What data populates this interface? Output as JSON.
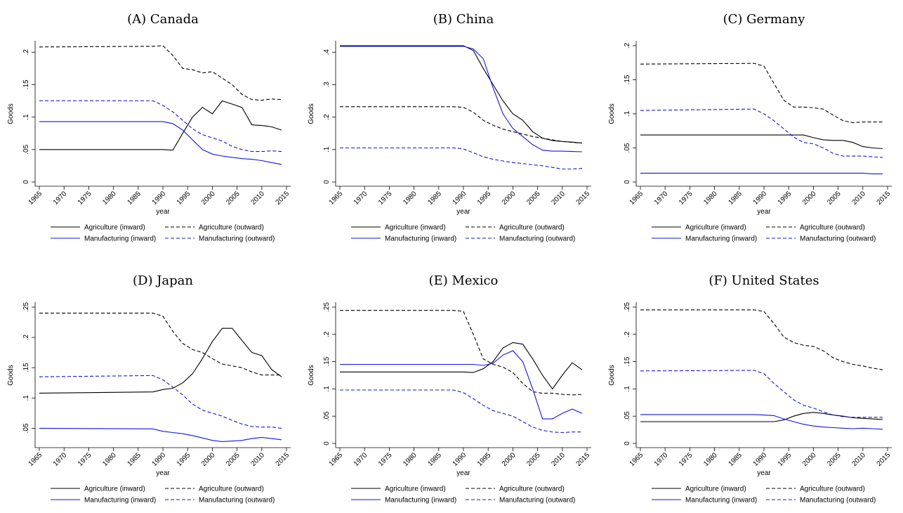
{
  "chart_data": [
    {
      "type": "line",
      "title": "(A) Canada",
      "x_label": "year",
      "y_label": "Goods",
      "x": [
        1965,
        1988,
        1990,
        1992,
        1994,
        1996,
        1998,
        2000,
        2002,
        2004,
        2006,
        2008,
        2010,
        2012,
        2014
      ],
      "xlim": [
        1965,
        2015
      ],
      "xticks": [
        1965,
        1970,
        1975,
        1980,
        1985,
        1990,
        1995,
        2000,
        2005,
        2010,
        2015
      ],
      "ylim": [
        0,
        0.21
      ],
      "yticks": [
        0,
        {
          "value": 0.05,
          "label": ".05"
        },
        {
          "value": 0.1,
          "label": ".1"
        },
        {
          "value": 0.15,
          "label": ".15"
        },
        {
          "value": 0.2,
          "label": ".2"
        }
      ],
      "series": [
        {
          "name": "Agriculture (inward)",
          "color": "#000000",
          "style": "solid",
          "values": [
            0.05,
            0.05,
            0.05,
            0.049,
            0.075,
            0.1,
            0.115,
            0.105,
            0.125,
            0.12,
            0.115,
            0.088,
            0.087,
            0.085,
            0.08
          ]
        },
        {
          "name": "Agriculture (outward)",
          "color": "#000000",
          "style": "dashed",
          "values": [
            0.208,
            0.209,
            0.21,
            0.195,
            0.175,
            0.173,
            0.168,
            0.17,
            0.16,
            0.15,
            0.135,
            0.127,
            0.126,
            0.128,
            0.127
          ]
        },
        {
          "name": "Manufacturing (inward)",
          "color": "#1414e6",
          "style": "solid",
          "values": [
            0.093,
            0.093,
            0.093,
            0.09,
            0.08,
            0.065,
            0.05,
            0.043,
            0.04,
            0.038,
            0.036,
            0.035,
            0.033,
            0.03,
            0.027
          ]
        },
        {
          "name": "Manufacturing (outward)",
          "color": "#1414e6",
          "style": "dashed",
          "values": [
            0.125,
            0.125,
            0.118,
            0.108,
            0.095,
            0.082,
            0.073,
            0.068,
            0.063,
            0.055,
            0.05,
            0.047,
            0.047,
            0.048,
            0.047
          ]
        }
      ]
    },
    {
      "type": "line",
      "title": "(B) China",
      "x_label": "year",
      "y_label": "Goods",
      "x": [
        1965,
        1988,
        1990,
        1992,
        1994,
        1996,
        1998,
        2000,
        2002,
        2004,
        2006,
        2008,
        2010,
        2012,
        2014
      ],
      "xlim": [
        1965,
        2015
      ],
      "xticks": [
        1965,
        1970,
        1975,
        1980,
        1985,
        1990,
        1995,
        2000,
        2005,
        2010,
        2015
      ],
      "ylim": [
        0,
        0.42
      ],
      "yticks": [
        0,
        {
          "value": 0.1,
          "label": ".1"
        },
        {
          "value": 0.2,
          "label": ".2"
        },
        {
          "value": 0.3,
          "label": ".3"
        },
        {
          "value": 0.4,
          "label": ".4"
        }
      ],
      "series": [
        {
          "name": "Agriculture (inward)",
          "color": "#000000",
          "style": "solid",
          "values": [
            0.42,
            0.42,
            0.42,
            0.405,
            0.35,
            0.3,
            0.25,
            0.21,
            0.19,
            0.155,
            0.135,
            0.128,
            0.125,
            0.123,
            0.12
          ]
        },
        {
          "name": "Agriculture (outward)",
          "color": "#000000",
          "style": "dashed",
          "values": [
            0.232,
            0.232,
            0.23,
            0.215,
            0.19,
            0.175,
            0.163,
            0.155,
            0.148,
            0.14,
            0.135,
            0.13,
            0.125,
            0.122,
            0.12
          ]
        },
        {
          "name": "Manufacturing (inward)",
          "color": "#1414e6",
          "style": "solid",
          "values": [
            0.418,
            0.418,
            0.418,
            0.41,
            0.38,
            0.29,
            0.21,
            0.165,
            0.14,
            0.115,
            0.098,
            0.095,
            0.095,
            0.094,
            0.093
          ]
        },
        {
          "name": "Manufacturing (outward)",
          "color": "#1414e6",
          "style": "dashed",
          "values": [
            0.105,
            0.105,
            0.102,
            0.09,
            0.078,
            0.07,
            0.065,
            0.06,
            0.057,
            0.053,
            0.05,
            0.045,
            0.04,
            0.04,
            0.042
          ]
        }
      ]
    },
    {
      "type": "line",
      "title": "(C) Germany",
      "x_label": "year",
      "y_label": "Goods",
      "x": [
        1965,
        1988,
        1990,
        1992,
        1994,
        1996,
        1998,
        2000,
        2002,
        2004,
        2006,
        2008,
        2010,
        2012,
        2014
      ],
      "xlim": [
        1965,
        2015
      ],
      "xticks": [
        1965,
        1970,
        1975,
        1980,
        1985,
        1990,
        1995,
        2000,
        2005,
        2010,
        2015
      ],
      "ylim": [
        0,
        0.2
      ],
      "yticks": [
        0,
        {
          "value": 0.05,
          "label": ".05"
        },
        {
          "value": 0.1,
          "label": ".1"
        },
        {
          "value": 0.15,
          "label": ".15"
        },
        {
          "value": 0.2,
          "label": ".2"
        }
      ],
      "series": [
        {
          "name": "Agriculture (inward)",
          "color": "#000000",
          "style": "solid",
          "values": [
            0.069,
            0.069,
            0.069,
            0.069,
            0.069,
            0.069,
            0.069,
            0.065,
            0.062,
            0.061,
            0.061,
            0.058,
            0.052,
            0.05,
            0.049
          ]
        },
        {
          "name": "Agriculture (outward)",
          "color": "#000000",
          "style": "dashed",
          "values": [
            0.173,
            0.174,
            0.17,
            0.145,
            0.12,
            0.11,
            0.11,
            0.109,
            0.107,
            0.098,
            0.09,
            0.087,
            0.088,
            0.088,
            0.088
          ]
        },
        {
          "name": "Manufacturing (inward)",
          "color": "#1414e6",
          "style": "solid",
          "values": [
            0.013,
            0.013,
            0.013,
            0.013,
            0.013,
            0.013,
            0.013,
            0.013,
            0.013,
            0.013,
            0.013,
            0.013,
            0.013,
            0.012,
            0.012
          ]
        },
        {
          "name": "Manufacturing (outward)",
          "color": "#1414e6",
          "style": "dashed",
          "values": [
            0.105,
            0.107,
            0.1,
            0.09,
            0.078,
            0.066,
            0.058,
            0.056,
            0.05,
            0.042,
            0.038,
            0.038,
            0.038,
            0.037,
            0.036
          ]
        }
      ]
    },
    {
      "type": "line",
      "title": "(D) Japan",
      "x_label": "year",
      "y_label": "Goods",
      "x": [
        1965,
        1988,
        1990,
        1992,
        1994,
        1996,
        1998,
        2000,
        2002,
        2004,
        2006,
        2008,
        2010,
        2012,
        2014
      ],
      "xlim": [
        1965,
        2015
      ],
      "xticks": [
        1965,
        1970,
        1975,
        1980,
        1985,
        1990,
        1995,
        2000,
        2005,
        2010,
        2015
      ],
      "ylim": [
        0.025,
        0.25
      ],
      "yticks": [
        {
          "value": 0.05,
          "label": ".05"
        },
        {
          "value": 0.1,
          "label": ".1"
        },
        {
          "value": 0.15,
          "label": ".15"
        },
        {
          "value": 0.2,
          "label": ".2"
        },
        {
          "value": 0.25,
          "label": ".25"
        }
      ],
      "series": [
        {
          "name": "Agriculture (inward)",
          "color": "#000000",
          "style": "solid",
          "values": [
            0.108,
            0.11,
            0.114,
            0.116,
            0.125,
            0.14,
            0.165,
            0.193,
            0.215,
            0.215,
            0.195,
            0.175,
            0.17,
            0.147,
            0.135
          ]
        },
        {
          "name": "Agriculture (outward)",
          "color": "#000000",
          "style": "dashed",
          "values": [
            0.24,
            0.24,
            0.235,
            0.21,
            0.19,
            0.18,
            0.175,
            0.165,
            0.156,
            0.153,
            0.15,
            0.143,
            0.138,
            0.138,
            0.138
          ]
        },
        {
          "name": "Manufacturing (inward)",
          "color": "#1414e6",
          "style": "solid",
          "values": [
            0.05,
            0.049,
            0.045,
            0.043,
            0.041,
            0.038,
            0.034,
            0.03,
            0.028,
            0.029,
            0.03,
            0.033,
            0.035,
            0.033,
            0.031
          ]
        },
        {
          "name": "Manufacturing (outward)",
          "color": "#1414e6",
          "style": "dashed",
          "values": [
            0.135,
            0.137,
            0.13,
            0.118,
            0.105,
            0.09,
            0.08,
            0.075,
            0.07,
            0.063,
            0.057,
            0.053,
            0.052,
            0.052,
            0.05
          ]
        }
      ]
    },
    {
      "type": "line",
      "title": "(E) Mexico",
      "x_label": "year",
      "y_label": "Goods",
      "x": [
        1965,
        1988,
        1990,
        1992,
        1994,
        1996,
        1998,
        2000,
        2002,
        2004,
        2006,
        2008,
        2010,
        2012,
        2014
      ],
      "xlim": [
        1965,
        2015
      ],
      "xticks": [
        1965,
        1970,
        1975,
        1980,
        1985,
        1990,
        1995,
        2000,
        2005,
        2010,
        2015
      ],
      "ylim": [
        0,
        0.25
      ],
      "yticks": [
        0,
        {
          "value": 0.05,
          "label": ".05"
        },
        {
          "value": 0.1,
          "label": ".1"
        },
        {
          "value": 0.15,
          "label": ".15"
        },
        {
          "value": 0.2,
          "label": ".2"
        },
        {
          "value": 0.25,
          "label": ".25"
        }
      ],
      "series": [
        {
          "name": "Agriculture (inward)",
          "color": "#000000",
          "style": "solid",
          "values": [
            0.131,
            0.131,
            0.131,
            0.13,
            0.137,
            0.15,
            0.175,
            0.185,
            0.182,
            0.155,
            0.125,
            0.1,
            0.125,
            0.148,
            0.135
          ]
        },
        {
          "name": "Agriculture (outward)",
          "color": "#000000",
          "style": "dashed",
          "values": [
            0.244,
            0.244,
            0.242,
            0.2,
            0.155,
            0.145,
            0.14,
            0.13,
            0.11,
            0.095,
            0.092,
            0.092,
            0.09,
            0.089,
            0.09
          ]
        },
        {
          "name": "Manufacturing (inward)",
          "color": "#1414e6",
          "style": "solid",
          "values": [
            0.145,
            0.145,
            0.145,
            0.145,
            0.143,
            0.147,
            0.162,
            0.17,
            0.15,
            0.1,
            0.045,
            0.045,
            0.055,
            0.063,
            0.055
          ]
        },
        {
          "name": "Manufacturing (outward)",
          "color": "#1414e6",
          "style": "dashed",
          "values": [
            0.098,
            0.098,
            0.093,
            0.082,
            0.07,
            0.06,
            0.055,
            0.05,
            0.04,
            0.03,
            0.024,
            0.021,
            0.02,
            0.021,
            0.021
          ]
        }
      ]
    },
    {
      "type": "line",
      "title": "(F) United States",
      "x_label": "year",
      "y_label": "Goods",
      "x": [
        1965,
        1988,
        1990,
        1992,
        1994,
        1996,
        1998,
        2000,
        2002,
        2004,
        2006,
        2008,
        2010,
        2012,
        2014
      ],
      "xlim": [
        1965,
        2015
      ],
      "xticks": [
        1965,
        1970,
        1975,
        1980,
        1985,
        1990,
        1995,
        2000,
        2005,
        2010,
        2015
      ],
      "ylim": [
        0,
        0.25
      ],
      "yticks": [
        0,
        {
          "value": 0.05,
          "label": ".05"
        },
        {
          "value": 0.1,
          "label": ".1"
        },
        {
          "value": 0.15,
          "label": ".15"
        },
        {
          "value": 0.2,
          "label": ".2"
        },
        {
          "value": 0.25,
          "label": ".25"
        }
      ],
      "series": [
        {
          "name": "Agriculture (inward)",
          "color": "#000000",
          "style": "solid",
          "values": [
            0.04,
            0.04,
            0.04,
            0.04,
            0.043,
            0.05,
            0.055,
            0.057,
            0.055,
            0.052,
            0.05,
            0.047,
            0.046,
            0.045,
            0.044
          ]
        },
        {
          "name": "Agriculture (outward)",
          "color": "#000000",
          "style": "dashed",
          "values": [
            0.245,
            0.245,
            0.242,
            0.22,
            0.195,
            0.185,
            0.18,
            0.178,
            0.17,
            0.157,
            0.15,
            0.145,
            0.142,
            0.138,
            0.135
          ]
        },
        {
          "name": "Manufacturing (inward)",
          "color": "#1414e6",
          "style": "solid",
          "values": [
            0.053,
            0.053,
            0.052,
            0.051,
            0.045,
            0.04,
            0.035,
            0.032,
            0.03,
            0.029,
            0.028,
            0.027,
            0.028,
            0.027,
            0.026
          ]
        },
        {
          "name": "Manufacturing (outward)",
          "color": "#1414e6",
          "style": "dashed",
          "values": [
            0.133,
            0.134,
            0.128,
            0.11,
            0.095,
            0.08,
            0.07,
            0.065,
            0.058,
            0.052,
            0.049,
            0.048,
            0.048,
            0.048,
            0.048
          ]
        }
      ]
    }
  ]
}
